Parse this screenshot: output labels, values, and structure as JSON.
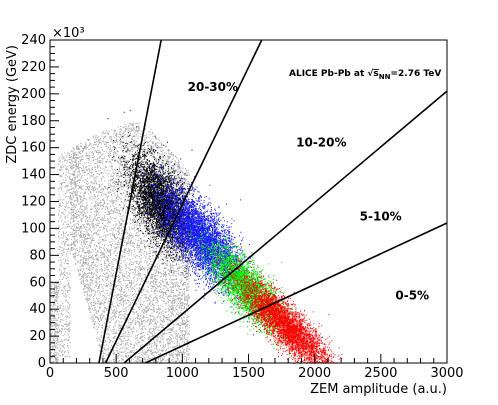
{
  "chart_data": {
    "type": "scatter",
    "xlabel": "ZEM amplitude (a.u.)",
    "ylabel": "ZDC energy (GeV)",
    "y_multiplier": "×10³",
    "xlim": [
      0,
      3000
    ],
    "ylim": [
      0,
      240
    ],
    "x_ticks": [
      0,
      500,
      1000,
      1500,
      2000,
      2500,
      3000
    ],
    "x_tick_labels": [
      "0",
      "500",
      "1000",
      "1500",
      "2000",
      "2500",
      "3000"
    ],
    "y_ticks": [
      0,
      20,
      40,
      60,
      80,
      100,
      120,
      140,
      160,
      180,
      200,
      220,
      240
    ],
    "y_tick_labels": [
      "0",
      "20",
      "40",
      "60",
      "80",
      "100",
      "120",
      "140",
      "160",
      "180",
      "200",
      "220",
      "240"
    ],
    "annotation": {
      "prefix": "ALICE Pb-Pb at ",
      "sqrt_symbol": "√",
      "s": "s",
      "subscript": "NN",
      "suffix": "=2.76 TeV"
    },
    "centrality_labels": [
      "20-30%",
      "10-20%",
      "5-10%",
      "0-5%"
    ],
    "centrality_label_positions": [
      {
        "x": 1040,
        "y": 202
      },
      {
        "x": 1860,
        "y": 161
      },
      {
        "x": 2340,
        "y": 106
      },
      {
        "x": 2610,
        "y": 47
      }
    ],
    "cut_lines": [
      {
        "from": [
          370,
          0
        ],
        "to": [
          840,
          240
        ]
      },
      {
        "from": [
          420,
          0
        ],
        "to": [
          1600,
          240
        ]
      },
      {
        "from": [
          560,
          0
        ],
        "to": [
          3000,
          202
        ]
      },
      {
        "from": [
          720,
          0
        ],
        "to": [
          3000,
          104
        ]
      }
    ],
    "series": [
      {
        "color": "#a8a8a8",
        "cluster": {
          "center": [
            560,
            135
          ],
          "spread": [
            280,
            26
          ],
          "count": 9000,
          "note_x_range": [
            0,
            1050
          ]
        }
      },
      {
        "color": "#000000",
        "cluster": {
          "center": [
            840,
            118
          ],
          "spread": [
            120,
            20
          ],
          "count": 4500
        }
      },
      {
        "color": "#1a1aff",
        "cluster": {
          "center": [
            1150,
            92
          ],
          "spread": [
            150,
            18
          ],
          "count": 5000
        }
      },
      {
        "color": "#00ee00",
        "cluster": {
          "center": [
            1480,
            56
          ],
          "spread": [
            140,
            14
          ],
          "count": 3600
        }
      },
      {
        "color": "#ff0000",
        "cluster": {
          "center": [
            1780,
            28
          ],
          "spread": [
            170,
            12
          ],
          "count": 4500
        }
      }
    ],
    "grid": false,
    "legend": "none"
  }
}
